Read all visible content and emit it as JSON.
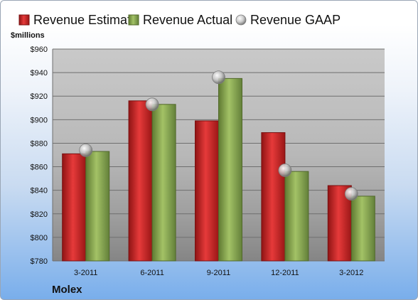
{
  "chart_data": {
    "type": "bar",
    "title": "",
    "ylabel": "$millions",
    "xlabel": "",
    "ylim": [
      780,
      960
    ],
    "yticks": [
      780,
      800,
      820,
      840,
      860,
      880,
      900,
      920,
      940,
      960
    ],
    "ytick_labels": [
      "$780",
      "$800",
      "$820",
      "$840",
      "$860",
      "$880",
      "$900",
      "$920",
      "$940",
      "$960"
    ],
    "categories": [
      "3-2011",
      "6-2011",
      "9-2011",
      "12-2011",
      "3-2012"
    ],
    "series": [
      {
        "name": "Revenue Estimate",
        "kind": "bar",
        "color": "#d42a2a",
        "values": [
          871,
          916,
          899,
          889,
          844
        ]
      },
      {
        "name": "Revenue Actual",
        "kind": "bar",
        "color": "#8cab55",
        "values": [
          873,
          913,
          935,
          856,
          835
        ]
      },
      {
        "name": "Revenue GAAP",
        "kind": "marker",
        "color": "#c8c8c8",
        "values": [
          874,
          913,
          936,
          857,
          837
        ]
      }
    ],
    "grid": true,
    "legend_position": "top",
    "company": "Molex"
  }
}
